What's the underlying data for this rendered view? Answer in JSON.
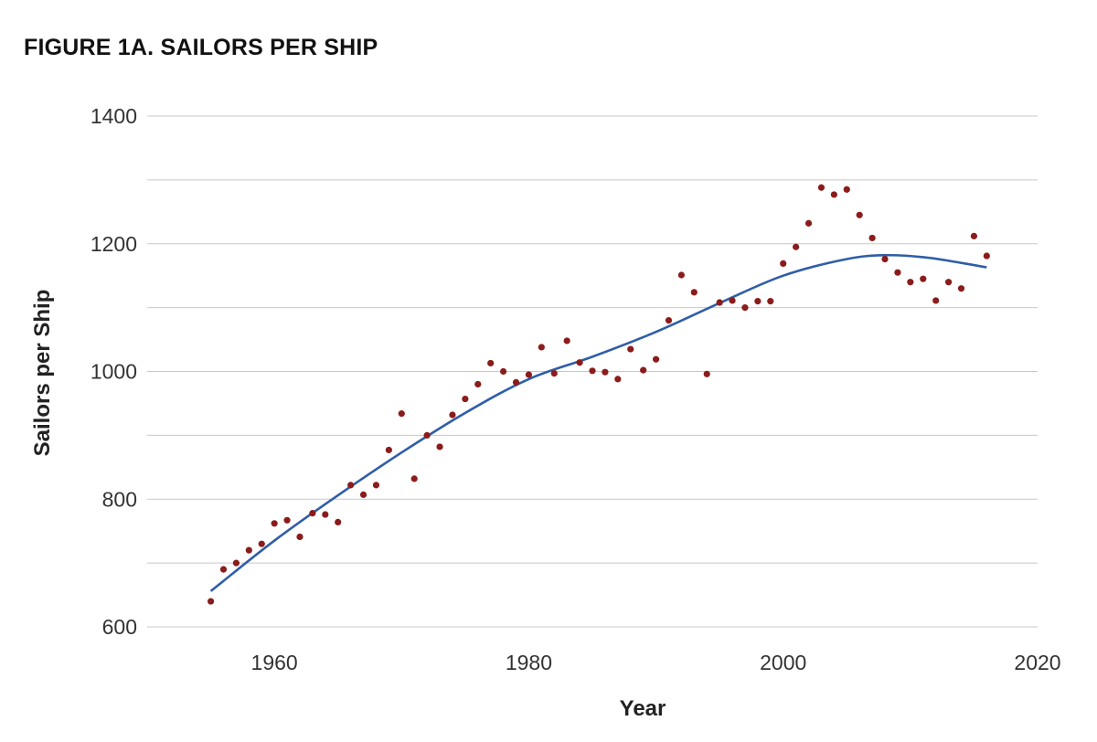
{
  "chart_data": {
    "type": "scatter",
    "title": "FIGURE 1A. SAILORS PER SHIP",
    "xlabel": "Year",
    "ylabel": "Sailors per Ship",
    "xlim": [
      1950,
      2020
    ],
    "ylim": [
      600,
      1400
    ],
    "x_ticks": [
      1960,
      1980,
      2000,
      2020
    ],
    "y_ticks": [
      600,
      800,
      1000,
      1200,
      1400
    ],
    "y_gridlines": [
      600,
      700,
      800,
      900,
      1000,
      1100,
      1200,
      1300,
      1400
    ],
    "grid": "horizontal",
    "colors": {
      "points": "#8b1c1c",
      "trend": "#2f5ea8",
      "grid": "#c8c8c8"
    },
    "points": [
      [
        1955,
        640
      ],
      [
        1956,
        690
      ],
      [
        1957,
        700
      ],
      [
        1958,
        720
      ],
      [
        1959,
        730
      ],
      [
        1960,
        762
      ],
      [
        1961,
        767
      ],
      [
        1962,
        741
      ],
      [
        1963,
        778
      ],
      [
        1964,
        776
      ],
      [
        1965,
        764
      ],
      [
        1966,
        822
      ],
      [
        1967,
        807
      ],
      [
        1968,
        822
      ],
      [
        1969,
        877
      ],
      [
        1970,
        934
      ],
      [
        1971,
        832
      ],
      [
        1972,
        900
      ],
      [
        1973,
        882
      ],
      [
        1974,
        932
      ],
      [
        1975,
        957
      ],
      [
        1976,
        980
      ],
      [
        1977,
        1013
      ],
      [
        1978,
        1000
      ],
      [
        1979,
        983
      ],
      [
        1980,
        995
      ],
      [
        1981,
        1038
      ],
      [
        1982,
        997
      ],
      [
        1983,
        1048
      ],
      [
        1984,
        1014
      ],
      [
        1985,
        1001
      ],
      [
        1986,
        999
      ],
      [
        1987,
        988
      ],
      [
        1988,
        1035
      ],
      [
        1989,
        1002
      ],
      [
        1990,
        1019
      ],
      [
        1991,
        1080
      ],
      [
        1992,
        1151
      ],
      [
        1993,
        1124
      ],
      [
        1994,
        996
      ],
      [
        1995,
        1108
      ],
      [
        1996,
        1111
      ],
      [
        1997,
        1100
      ],
      [
        1998,
        1110
      ],
      [
        1999,
        1110
      ],
      [
        2000,
        1169
      ],
      [
        2001,
        1195
      ],
      [
        2002,
        1232
      ],
      [
        2003,
        1288
      ],
      [
        2004,
        1277
      ],
      [
        2005,
        1285
      ],
      [
        2006,
        1245
      ],
      [
        2007,
        1209
      ],
      [
        2008,
        1176
      ],
      [
        2009,
        1155
      ],
      [
        2010,
        1140
      ],
      [
        2011,
        1145
      ],
      [
        2012,
        1111
      ],
      [
        2013,
        1140
      ],
      [
        2014,
        1130
      ],
      [
        2015,
        1212
      ],
      [
        2016,
        1181
      ]
    ],
    "trend_line": [
      [
        1955,
        656
      ],
      [
        1960,
        735
      ],
      [
        1965,
        806
      ],
      [
        1970,
        873
      ],
      [
        1975,
        935
      ],
      [
        1980,
        988
      ],
      [
        1985,
        1023
      ],
      [
        1990,
        1062
      ],
      [
        1995,
        1107
      ],
      [
        2000,
        1150
      ],
      [
        2005,
        1176
      ],
      [
        2008,
        1182
      ],
      [
        2011,
        1179
      ],
      [
        2014,
        1170
      ],
      [
        2016,
        1163
      ]
    ]
  }
}
